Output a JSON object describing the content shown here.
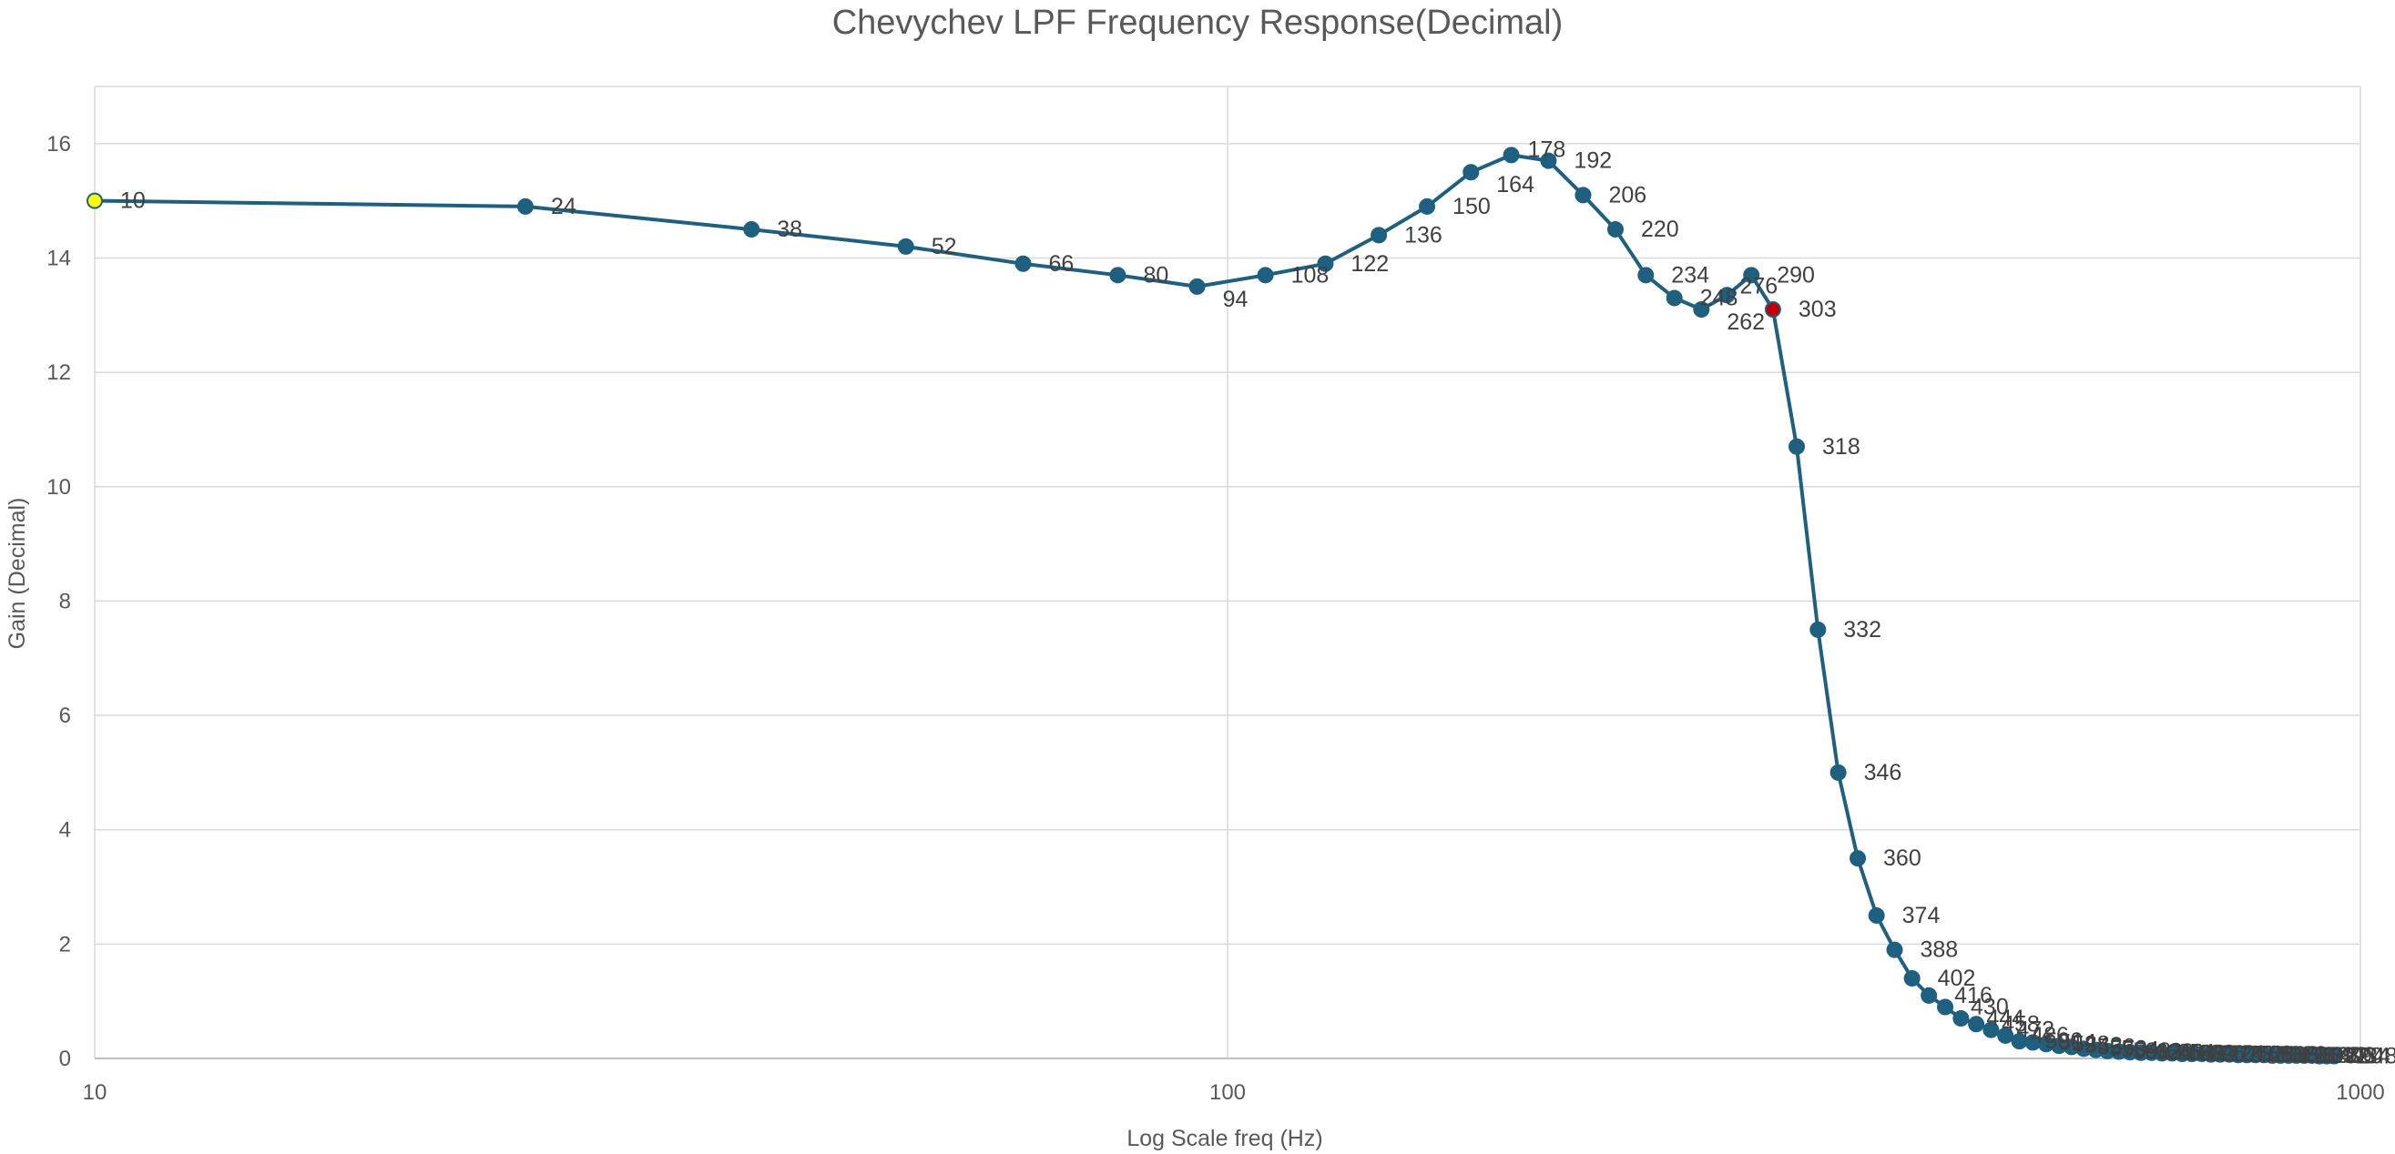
{
  "chart_data": {
    "type": "line",
    "title": "Chevychev LPF Frequency Response(Decimal)",
    "xlabel": "Log Scale freq (Hz)",
    "ylabel": "Gain (Decimal)",
    "xscale": "log",
    "xlim": [
      10,
      1000
    ],
    "ylim": [
      0,
      17
    ],
    "xticks": [
      10,
      100,
      1000
    ],
    "yticks": [
      0,
      2,
      4,
      6,
      8,
      10,
      12,
      14,
      16
    ],
    "grid": true,
    "legend": "none",
    "colors": {
      "series": "#1F5F7F",
      "first_point": "#FFFF00",
      "highlight_point": "#C00000",
      "grid": "#D9D9D9",
      "text": "#595959"
    },
    "series": [
      {
        "name": "Gain",
        "x": [
          10,
          24,
          38,
          52,
          66,
          80,
          94,
          108,
          122,
          136,
          150,
          164,
          178,
          192,
          206,
          220,
          234,
          248,
          262,
          276,
          290,
          303,
          318,
          332,
          346,
          360,
          374,
          388,
          402,
          416,
          430,
          444,
          458,
          472,
          486,
          500,
          514,
          528,
          542,
          556,
          570,
          584,
          598,
          612,
          626,
          640,
          654,
          668,
          682,
          696,
          710,
          724,
          738,
          752,
          766,
          780,
          794,
          808,
          822,
          836,
          850,
          864,
          878,
          892,
          906,
          920,
          934,
          948
        ],
        "y": [
          15.0,
          14.9,
          14.5,
          14.2,
          13.9,
          13.7,
          13.5,
          13.7,
          13.9,
          14.4,
          14.9,
          15.5,
          15.8,
          15.7,
          15.1,
          14.5,
          13.7,
          13.3,
          13.1,
          13.35,
          13.7,
          13.1,
          10.7,
          7.5,
          5.0,
          3.5,
          2.5,
          1.9,
          1.4,
          1.1,
          0.9,
          0.7,
          0.6,
          0.5,
          0.4,
          0.3,
          0.28,
          0.25,
          0.22,
          0.2,
          0.17,
          0.15,
          0.13,
          0.12,
          0.11,
          0.1,
          0.1,
          0.09,
          0.09,
          0.08,
          0.08,
          0.08,
          0.07,
          0.07,
          0.07,
          0.06,
          0.06,
          0.06,
          0.06,
          0.05,
          0.05,
          0.05,
          0.05,
          0.05,
          0.05,
          0.04,
          0.04,
          0.04
        ],
        "labels": [
          "10",
          "24",
          "38",
          "52",
          "66",
          "80",
          "94",
          "108",
          "122",
          "136",
          "150",
          "164",
          "178",
          "192",
          "206",
          "220",
          "234",
          "248",
          "262",
          "276",
          "290",
          "303",
          "318",
          "332",
          "346",
          "360",
          "374",
          "388",
          "402",
          "416",
          "430",
          "444",
          "458",
          "472",
          "486",
          "500",
          "514",
          "528",
          "542",
          "556",
          "570",
          "584",
          "598",
          "612",
          "626",
          "640",
          "654",
          "668",
          "682",
          "696",
          "710",
          "724",
          "738",
          "752",
          "766",
          "780",
          "794",
          "808",
          "822",
          "836",
          "850",
          "864",
          "878",
          "892",
          "906",
          "920",
          "934",
          "948"
        ],
        "highlight": {
          "first": 0,
          "red": 21
        }
      }
    ]
  }
}
